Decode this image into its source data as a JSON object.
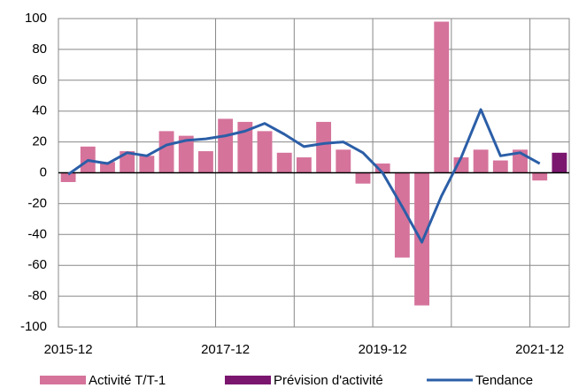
{
  "chart_data": {
    "type": "bar",
    "categories": [
      "2015-12",
      null,
      null,
      null,
      null,
      null,
      null,
      null,
      "2017-12",
      null,
      null,
      null,
      null,
      null,
      null,
      null,
      "2019-12",
      null,
      null,
      null,
      null,
      null,
      null,
      null,
      "2021-12",
      null
    ],
    "series": [
      {
        "name": "Activité T/T-1",
        "type": "bar",
        "color": "#d5739b",
        "values": [
          -6,
          17,
          7,
          14,
          11,
          27,
          24,
          14,
          35,
          33,
          27,
          13,
          10,
          33,
          15,
          -7,
          6,
          -55,
          -86,
          98,
          10,
          15,
          8,
          15,
          -5,
          null
        ]
      },
      {
        "name": "Prévision d'activité",
        "type": "bar",
        "color": "#7b166f",
        "values": [
          null,
          null,
          null,
          null,
          null,
          null,
          null,
          null,
          null,
          null,
          null,
          null,
          null,
          null,
          null,
          null,
          null,
          null,
          null,
          null,
          null,
          null,
          null,
          null,
          null,
          13
        ]
      },
      {
        "name": "Tendance",
        "type": "line",
        "color": "#2b5ea7",
        "values": [
          -1,
          8,
          6,
          13,
          11,
          18,
          21,
          22,
          24,
          27,
          32,
          25,
          17,
          19,
          20,
          13,
          0,
          -22,
          -45,
          -15,
          10,
          41,
          11,
          13,
          6,
          null
        ]
      }
    ],
    "ylim": [
      -100,
      100
    ],
    "yticks": [
      -100,
      -80,
      -60,
      -40,
      -20,
      0,
      20,
      40,
      60,
      80,
      100
    ],
    "grid": true
  }
}
